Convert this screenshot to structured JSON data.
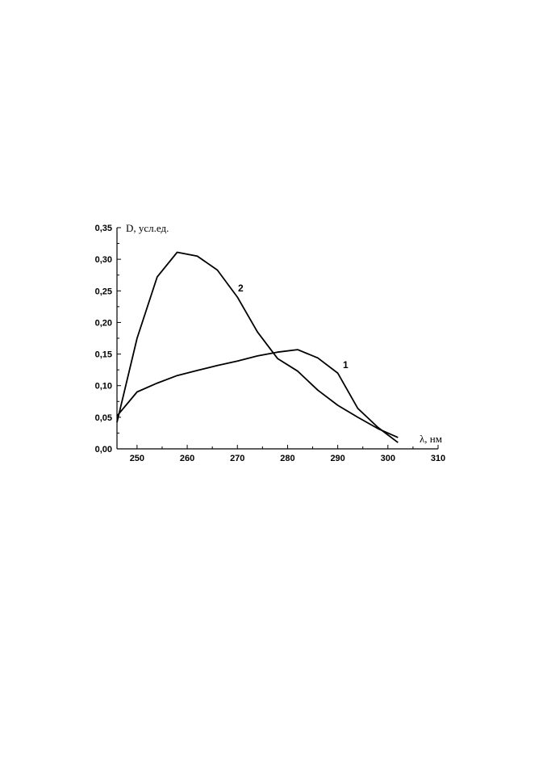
{
  "chart_data": {
    "type": "line",
    "xlabel": "λ, нм",
    "ylabel": "D, усл.ед.",
    "xlim": [
      246,
      310
    ],
    "ylim": [
      0,
      0.35
    ],
    "x_ticks": [
      250,
      260,
      270,
      280,
      290,
      300,
      310
    ],
    "x_tick_labels": [
      "250",
      "260",
      "270",
      "280",
      "290",
      "300",
      "310"
    ],
    "y_ticks": [
      0,
      0.05,
      0.1,
      0.15,
      0.2,
      0.25,
      0.3,
      0.35
    ],
    "y_tick_labels": [
      "0,00",
      "0,05",
      "0,10",
      "0,15",
      "0,20",
      "0,25",
      "0,30",
      "0,35"
    ],
    "grid": false,
    "legend": "none",
    "series": [
      {
        "name": "1",
        "color": "#000000",
        "x": [
          246,
          250,
          254,
          258,
          262,
          266,
          270,
          274,
          278,
          282,
          286,
          290,
          294,
          298,
          302
        ],
        "y": [
          0.052,
          0.09,
          0.104,
          0.116,
          0.124,
          0.132,
          0.139,
          0.147,
          0.153,
          0.157,
          0.144,
          0.12,
          0.064,
          0.034,
          0.01
        ]
      },
      {
        "name": "2",
        "color": "#000000",
        "x": [
          246,
          250,
          254,
          258,
          262,
          266,
          270,
          274,
          278,
          282,
          286,
          290,
          294,
          298,
          302
        ],
        "y": [
          0.042,
          0.175,
          0.272,
          0.311,
          0.305,
          0.283,
          0.24,
          0.185,
          0.143,
          0.123,
          0.093,
          0.069,
          0.05,
          0.032,
          0.018
        ]
      }
    ]
  }
}
